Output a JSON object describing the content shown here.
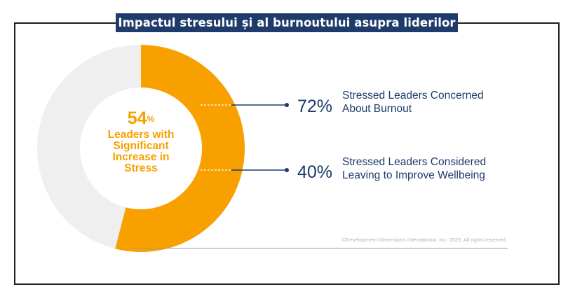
{
  "title": "Impactul stresului și al burnoutului asupra liderilor",
  "center": {
    "value": "54",
    "unit": "%",
    "label_lines": [
      "Leaders with",
      "Significant",
      "Increase in",
      "Stress"
    ]
  },
  "stats": [
    {
      "value": "72%",
      "label_lines": [
        "Stressed Leaders Concerned",
        "About Burnout"
      ]
    },
    {
      "value": "40%",
      "label_lines": [
        "Stressed Leaders Considered",
        "Leaving to Improve Wellbeing"
      ]
    }
  ],
  "copyright": "©Development Dimensions International, Inc. 2025. All rights reserved.",
  "colors": {
    "accent": "#f7a000",
    "remainder": "#efefef",
    "navy": "#1e3b6b"
  },
  "chart_data": {
    "type": "pie",
    "style": "donut",
    "slices": [
      {
        "value": 54,
        "color": "#f7a000"
      },
      {
        "value": 46,
        "color": "#efefef"
      }
    ],
    "annotations": [
      {
        "value": 72,
        "unit": "%",
        "text": "Stressed Leaders Concerned About Burnout"
      },
      {
        "value": 40,
        "unit": "%",
        "text": "Stressed Leaders Considered Leaving to Improve Wellbeing"
      }
    ]
  }
}
